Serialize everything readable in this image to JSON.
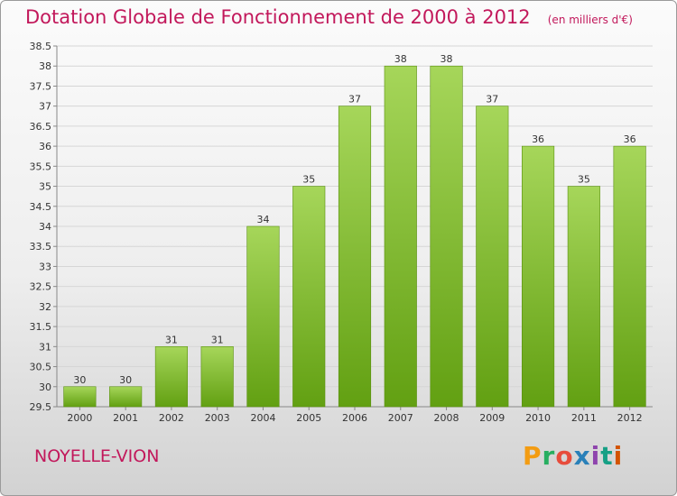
{
  "header": {
    "title": "Dotation Globale de Fonctionnement de 2000 à 2012",
    "subtitle": "(en milliers d'€)"
  },
  "footer": {
    "commune": "NOYELLE-VION",
    "brand": "Proxiti",
    "brand_colors": [
      "#f39c12",
      "#27ae60",
      "#e74c3c",
      "#2980b9",
      "#8e44ad",
      "#16a085",
      "#d35400"
    ]
  },
  "chart_data": {
    "type": "bar",
    "title": "Dotation Globale de Fonctionnement de 2000 à 2012",
    "subtitle": "(en milliers d'€)",
    "xlabel": "",
    "ylabel": "",
    "categories": [
      "2000",
      "2001",
      "2002",
      "2003",
      "2004",
      "2005",
      "2006",
      "2007",
      "2008",
      "2009",
      "2010",
      "2011",
      "2012"
    ],
    "values": [
      30,
      30,
      31,
      31,
      34,
      35,
      37,
      38,
      38,
      37,
      36,
      35,
      36
    ],
    "data_labels": [
      "30",
      "30",
      "31",
      "31",
      "34",
      "35",
      "37",
      "38",
      "38",
      "37",
      "36",
      "35",
      "36"
    ],
    "ylim": [
      29.5,
      38.5
    ],
    "yticks": [
      29.5,
      30,
      30.5,
      31,
      31.5,
      32,
      32.5,
      33,
      33.5,
      34,
      34.5,
      35,
      35.5,
      36,
      36.5,
      37,
      37.5,
      38,
      38.5
    ],
    "ytick_labels": [
      "29.5",
      "30",
      "30.5",
      "31",
      "31.5",
      "32",
      "32.5",
      "33",
      "33.5",
      "34",
      "34.5",
      "35",
      "35.5",
      "36",
      "36.5",
      "37",
      "37.5",
      "38",
      "38.5"
    ],
    "grid": true,
    "bar_color_top": "#a6d65a",
    "bar_color_bottom": "#62a012",
    "legend": "none"
  }
}
